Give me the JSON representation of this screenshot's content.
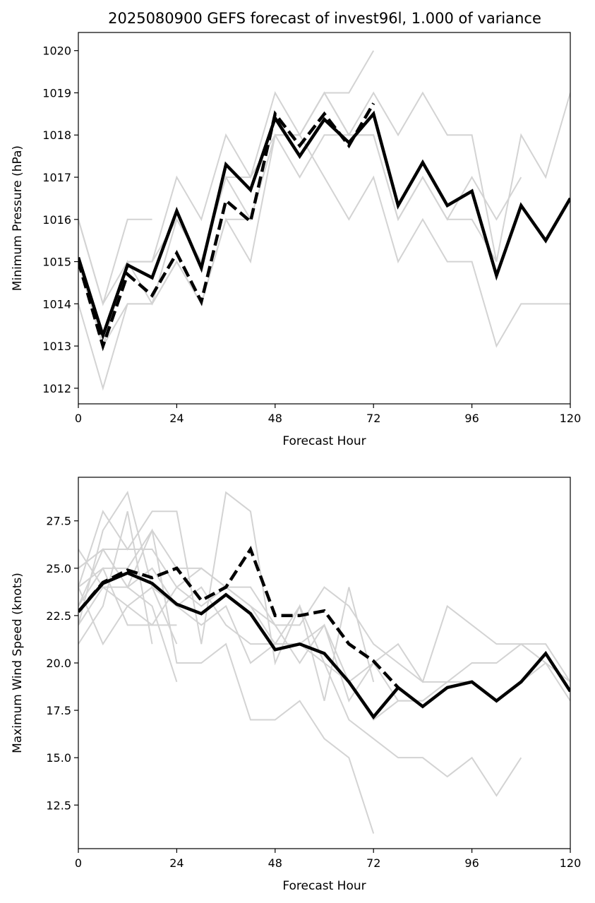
{
  "figure": {
    "title": "2025080900 GEFS forecast of invest96l, 1.000 of variance"
  },
  "colors": {
    "member": "#d3d3d3",
    "mean": "#000000",
    "frame": "#000000",
    "background": "#ffffff"
  },
  "chart_data": [
    {
      "type": "line",
      "title": "2025080900 GEFS forecast of invest96l, 1.000 of variance",
      "xlabel": "Forecast Hour",
      "ylabel": "Minimum Pressure (hPa)",
      "xlim": [
        0,
        120
      ],
      "ylim": [
        1011.63,
        1020.43
      ],
      "xticks": [
        0,
        24,
        48,
        72,
        96,
        120
      ],
      "yticks": [
        1012,
        1013,
        1014,
        1015,
        1016,
        1017,
        1018,
        1019,
        1020
      ],
      "grid": false,
      "members": [
        {
          "x": [
            0,
            6,
            12,
            18,
            24,
            30,
            36,
            42,
            48,
            54,
            60,
            66,
            72,
            78,
            84,
            90,
            96,
            102,
            108,
            114,
            120
          ],
          "y": [
            1016,
            1014,
            1015,
            1015,
            1017,
            1016,
            1018,
            1017,
            1019,
            1018,
            1019,
            1019,
            1020,
            null,
            null,
            null,
            null,
            null,
            null,
            null,
            null
          ]
        },
        {
          "x": [
            0,
            6,
            12,
            18,
            24,
            30,
            36,
            42,
            48,
            54,
            60,
            66,
            72,
            78,
            84,
            90,
            96,
            102,
            108,
            114,
            120
          ],
          "y": [
            1015,
            1013,
            1015,
            1015,
            1016,
            1015,
            1017,
            1017,
            1018,
            1018,
            1019,
            1018,
            1019,
            1018,
            1019,
            1018,
            1018,
            1015,
            1018,
            1017,
            1019
          ]
        },
        {
          "x": [
            0,
            6,
            12,
            18,
            24,
            30,
            36,
            42,
            48,
            54,
            60,
            66,
            72,
            78,
            84,
            90,
            96,
            102,
            108,
            114,
            120
          ],
          "y": [
            1014,
            1012,
            1014,
            1014,
            1015,
            1014,
            1016,
            1016,
            1018,
            1017,
            1018,
            1018,
            1018,
            1016,
            1017,
            1016,
            1017,
            1016,
            1017,
            null,
            null
          ]
        },
        {
          "x": [
            0,
            6,
            12,
            18,
            24,
            30,
            36,
            42,
            48,
            54,
            60,
            66,
            72,
            78,
            84,
            90,
            96,
            102,
            108,
            114,
            120
          ],
          "y": [
            1015,
            1013,
            1014,
            1014,
            1015,
            1014,
            1016,
            1015,
            1018,
            1018,
            1017,
            1016,
            1017,
            1015,
            1016,
            1015,
            1015,
            1013,
            1014,
            1014,
            1014
          ]
        },
        {
          "x": [
            0,
            6,
            12,
            18,
            24,
            30,
            36,
            42,
            48,
            54,
            60,
            66,
            72,
            78,
            84,
            90,
            96,
            102,
            108,
            114,
            120
          ],
          "y": [
            1016,
            1014,
            1016,
            1016,
            null,
            null,
            null,
            null,
            null,
            null,
            null,
            null,
            null,
            null,
            null,
            null,
            null,
            null,
            null,
            null,
            null
          ]
        },
        {
          "x": [
            0,
            6,
            12,
            18,
            24,
            30,
            36,
            42,
            48,
            54,
            60,
            66,
            72,
            78,
            84,
            90,
            96,
            102,
            108,
            114,
            120
          ],
          "y": [
            1015,
            1013,
            1015,
            1014,
            1016,
            1015,
            1017,
            1016,
            1018,
            1018,
            1019,
            1018,
            1018,
            1016,
            1017,
            1016,
            1016,
            1015,
            null,
            null,
            null
          ]
        }
      ],
      "mean": {
        "x": [
          0,
          6,
          12,
          18,
          24,
          30,
          36,
          42,
          48,
          54,
          60,
          66,
          72,
          78,
          84,
          90,
          96,
          102,
          108,
          114,
          120
        ],
        "y": [
          1015.1,
          1013.25,
          1014.92,
          1014.62,
          1016.2,
          1014.85,
          1017.3,
          1016.7,
          1018.4,
          1017.5,
          1018.37,
          1017.82,
          1018.5,
          1016.33,
          1017.35,
          1016.33,
          1016.67,
          1014.67,
          1016.33,
          1015.5,
          1016.5
        ]
      },
      "median": {
        "x": [
          0,
          6,
          12,
          18,
          24,
          30,
          36,
          42,
          48,
          54,
          60,
          66,
          72,
          78,
          84,
          90,
          96,
          102,
          108,
          114,
          120
        ],
        "y": [
          1015.0,
          1013.0,
          1014.7,
          1014.2,
          1015.2,
          1014.05,
          1016.45,
          1015.95,
          1018.5,
          1017.75,
          1018.5,
          1017.75,
          1018.75,
          null,
          null,
          null,
          null,
          null,
          null,
          null,
          null
        ]
      }
    },
    {
      "type": "line",
      "title": "",
      "xlabel": "Forecast Hour",
      "ylabel": "Maximum Wind Speed (knots)",
      "xlim": [
        0,
        120
      ],
      "ylim": [
        10.2,
        29.8
      ],
      "xticks": [
        0,
        24,
        48,
        72,
        96,
        120
      ],
      "yticks": [
        12.5,
        15.0,
        17.5,
        20.0,
        22.5,
        25.0,
        27.5
      ],
      "yticklabels": [
        "12.5",
        "15.0",
        "17.5",
        "20.0",
        "22.5",
        "25.0",
        "27.5"
      ],
      "grid": false,
      "members": [
        {
          "x": [
            0,
            6,
            12,
            18,
            24,
            30,
            36,
            42,
            48,
            54,
            60,
            66,
            72,
            78,
            84,
            90,
            96,
            102,
            108,
            114,
            120
          ],
          "y": [
            24,
            28,
            26,
            28,
            28,
            21,
            29,
            28,
            20,
            23,
            18,
            24,
            19,
            null,
            null,
            null,
            null,
            null,
            null,
            null,
            null
          ]
        },
        {
          "x": [
            0,
            6,
            12,
            18,
            24,
            30,
            36,
            42,
            48,
            54,
            60,
            66,
            72,
            78,
            84,
            90,
            96,
            102,
            108,
            114,
            120
          ],
          "y": [
            22,
            27,
            29,
            24,
            21,
            null,
            null,
            null,
            null,
            null,
            null,
            null,
            null,
            null,
            null,
            null,
            null,
            null,
            null,
            null,
            null
          ]
        },
        {
          "x": [
            0,
            6,
            12,
            18,
            24,
            30,
            36,
            42,
            48,
            54,
            60,
            66,
            72,
            78,
            84,
            90,
            96,
            102,
            108,
            114,
            120
          ],
          "y": [
            23,
            26,
            26,
            26,
            24,
            25,
            24,
            23,
            21,
            23,
            20,
            17,
            16,
            15,
            15,
            14,
            15,
            13,
            15,
            null,
            null
          ]
        },
        {
          "x": [
            0,
            6,
            12,
            18,
            24,
            30,
            36,
            42,
            48,
            54,
            60,
            66,
            72,
            78,
            84,
            90,
            96,
            102,
            108,
            114,
            120
          ],
          "y": [
            25,
            26,
            24,
            27,
            25,
            25,
            24,
            24,
            22,
            22,
            24,
            23,
            21,
            20,
            19,
            23,
            22,
            21,
            21,
            21,
            19
          ]
        },
        {
          "x": [
            0,
            6,
            12,
            18,
            24,
            30,
            36,
            42,
            48,
            54,
            60,
            66,
            72,
            78,
            84,
            90,
            96,
            102,
            108,
            114,
            120
          ],
          "y": [
            21,
            23,
            28,
            21,
            null,
            null,
            null,
            null,
            null,
            null,
            null,
            null,
            null,
            null,
            null,
            null,
            null,
            null,
            null,
            null,
            null
          ]
        },
        {
          "x": [
            0,
            6,
            12,
            18,
            24,
            30,
            36,
            42,
            48,
            54,
            60,
            66,
            72,
            78,
            84,
            90,
            96,
            102,
            108,
            114,
            120
          ],
          "y": [
            24,
            25,
            22,
            22,
            22,
            null,
            null,
            null,
            null,
            null,
            null,
            null,
            null,
            null,
            null,
            null,
            null,
            null,
            null,
            null,
            null
          ]
        },
        {
          "x": [
            0,
            6,
            12,
            18,
            24,
            30,
            36,
            42,
            48,
            54,
            60,
            66,
            72,
            78,
            84,
            90,
            96,
            102,
            108,
            114,
            120
          ],
          "y": [
            26,
            24,
            24,
            23,
            19,
            null,
            null,
            null,
            null,
            null,
            null,
            null,
            null,
            null,
            null,
            null,
            null,
            null,
            null,
            null,
            null
          ]
        },
        {
          "x": [
            0,
            6,
            12,
            18,
            24,
            30,
            36,
            42,
            48,
            54,
            60,
            66,
            72,
            78,
            84,
            90,
            96,
            102,
            108,
            114,
            120
          ],
          "y": [
            23,
            25,
            25,
            27,
            20,
            20,
            21,
            17,
            17,
            18,
            16,
            15,
            11,
            null,
            null,
            null,
            null,
            null,
            null,
            null,
            null
          ]
        },
        {
          "x": [
            0,
            6,
            12,
            18,
            24,
            30,
            36,
            42,
            48,
            54,
            60,
            66,
            72,
            78,
            84,
            90,
            96,
            102,
            108,
            114,
            120
          ],
          "y": [
            22,
            24,
            23,
            24,
            23,
            22,
            23,
            20,
            21,
            21,
            22,
            18,
            20,
            21,
            19,
            19,
            20,
            20,
            21,
            20,
            18
          ]
        },
        {
          "x": [
            0,
            6,
            12,
            18,
            24,
            30,
            36,
            42,
            48,
            54,
            60,
            66,
            72,
            78,
            84,
            90,
            96,
            102,
            108,
            114,
            120
          ],
          "y": [
            25,
            26,
            24,
            25,
            23,
            24,
            22,
            21,
            21,
            21,
            20,
            19,
            20,
            18,
            18,
            19,
            19,
            18,
            19,
            null,
            null
          ]
        },
        {
          "x": [
            0,
            6,
            12,
            18,
            24,
            30,
            36,
            42,
            48,
            54,
            60,
            66,
            72,
            78,
            84,
            90,
            96,
            102,
            108,
            114,
            120
          ],
          "y": [
            24,
            21,
            23,
            22,
            24,
            23,
            24,
            23,
            22,
            20,
            22,
            19,
            17,
            18,
            18,
            19,
            19,
            18,
            19,
            20,
            19
          ]
        }
      ],
      "mean": {
        "x": [
          0,
          6,
          12,
          18,
          24,
          30,
          36,
          42,
          48,
          54,
          60,
          66,
          72,
          78,
          84,
          90,
          96,
          102,
          108,
          114,
          120
        ],
        "y": [
          22.7,
          24.2,
          24.75,
          24.2,
          23.1,
          22.6,
          23.6,
          22.6,
          20.7,
          21.0,
          20.5,
          19.0,
          17.15,
          18.7,
          17.7,
          18.7,
          19.0,
          18.0,
          19.0,
          20.5,
          18.5
        ]
      },
      "median": {
        "x": [
          0,
          6,
          12,
          18,
          24,
          30,
          36,
          42,
          48,
          54,
          60,
          66,
          72,
          78,
          84,
          90,
          96,
          102,
          108,
          114,
          120
        ],
        "y": [
          22.7,
          24.25,
          24.9,
          24.5,
          25.0,
          23.3,
          24.0,
          26.0,
          22.5,
          22.5,
          22.75,
          21.0,
          20.1,
          18.7,
          null,
          null,
          null,
          null,
          null,
          null,
          null
        ]
      }
    }
  ]
}
